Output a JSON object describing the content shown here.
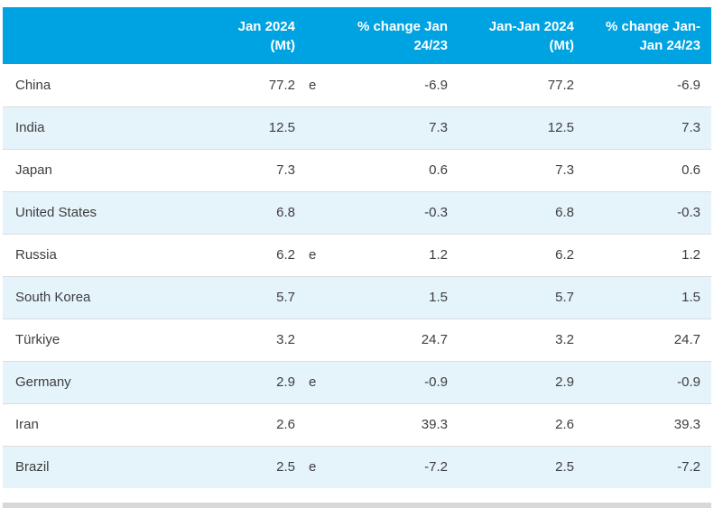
{
  "table": {
    "header": {
      "col_country": "",
      "col_jan_mt": "Jan 2024\n(Mt)",
      "col_flag": "",
      "col_pct_jan": "% change Jan\n24/23",
      "col_janjan_mt": "Jan-Jan 2024\n(Mt)",
      "col_pct_janjan": "% change Jan-\nJan 24/23"
    },
    "rows": [
      {
        "country": "China",
        "jan_2024_mt": "77.2",
        "flag": "e",
        "pct_change_jan": "-6.9",
        "jan_jan_2024_mt": "77.2",
        "pct_change_jan_jan": "-6.9"
      },
      {
        "country": "India",
        "jan_2024_mt": "12.5",
        "flag": "",
        "pct_change_jan": "7.3",
        "jan_jan_2024_mt": "12.5",
        "pct_change_jan_jan": "7.3"
      },
      {
        "country": "Japan",
        "jan_2024_mt": "7.3",
        "flag": "",
        "pct_change_jan": "0.6",
        "jan_jan_2024_mt": "7.3",
        "pct_change_jan_jan": "0.6"
      },
      {
        "country": "United States",
        "jan_2024_mt": "6.8",
        "flag": "",
        "pct_change_jan": "-0.3",
        "jan_jan_2024_mt": "6.8",
        "pct_change_jan_jan": "-0.3"
      },
      {
        "country": "Russia",
        "jan_2024_mt": "6.2",
        "flag": "e",
        "pct_change_jan": "1.2",
        "jan_jan_2024_mt": "6.2",
        "pct_change_jan_jan": "1.2"
      },
      {
        "country": "South Korea",
        "jan_2024_mt": "5.7",
        "flag": "",
        "pct_change_jan": "1.5",
        "jan_jan_2024_mt": "5.7",
        "pct_change_jan_jan": "1.5"
      },
      {
        "country": "Türkiye",
        "jan_2024_mt": "3.2",
        "flag": "",
        "pct_change_jan": "24.7",
        "jan_jan_2024_mt": "3.2",
        "pct_change_jan_jan": "24.7"
      },
      {
        "country": "Germany",
        "jan_2024_mt": "2.9",
        "flag": "e",
        "pct_change_jan": "-0.9",
        "jan_jan_2024_mt": "2.9",
        "pct_change_jan_jan": "-0.9"
      },
      {
        "country": "Iran",
        "jan_2024_mt": "2.6",
        "flag": "",
        "pct_change_jan": "39.3",
        "jan_jan_2024_mt": "2.6",
        "pct_change_jan_jan": "39.3"
      },
      {
        "country": "Brazil",
        "jan_2024_mt": "2.5",
        "flag": "e",
        "pct_change_jan": "-7.2",
        "jan_jan_2024_mt": "2.5",
        "pct_change_jan_jan": "-7.2"
      }
    ],
    "estimate_flag_symbol": "e"
  },
  "colors": {
    "header_bg": "#00A3E1",
    "header_text": "#FFFFFF",
    "row_bg": "#FFFFFF",
    "row_alt_bg": "#E5F3FB",
    "row_divider": "#DCDCDC",
    "body_text": "#3E3E3E",
    "bottom_bar": "#D8D8D8",
    "page_bg": "#FFFFFF"
  },
  "chart_data": {
    "type": "table",
    "columns": [
      "",
      "Jan 2024 (Mt)",
      "",
      "% change Jan 24/23",
      "Jan-Jan 2024 (Mt)",
      "% change Jan-Jan 24/23"
    ],
    "rows": [
      [
        "China",
        77.2,
        "e",
        -6.9,
        77.2,
        -6.9
      ],
      [
        "India",
        12.5,
        "",
        7.3,
        12.5,
        7.3
      ],
      [
        "Japan",
        7.3,
        "",
        0.6,
        7.3,
        0.6
      ],
      [
        "United States",
        6.8,
        "",
        -0.3,
        6.8,
        -0.3
      ],
      [
        "Russia",
        6.2,
        "e",
        1.2,
        6.2,
        1.2
      ],
      [
        "South Korea",
        5.7,
        "",
        1.5,
        5.7,
        1.5
      ],
      [
        "Türkiye",
        3.2,
        "",
        24.7,
        3.2,
        24.7
      ],
      [
        "Germany",
        2.9,
        "e",
        -0.9,
        2.9,
        -0.9
      ],
      [
        "Iran",
        2.6,
        "",
        39.3,
        2.6,
        39.3
      ],
      [
        "Brazil",
        2.5,
        "e",
        -7.2,
        2.5,
        -7.2
      ]
    ],
    "layout_hints": {
      "alternating_row_tint_starts_at_row_index": 1,
      "value_alignment": "right",
      "header_alignment": "right"
    }
  }
}
